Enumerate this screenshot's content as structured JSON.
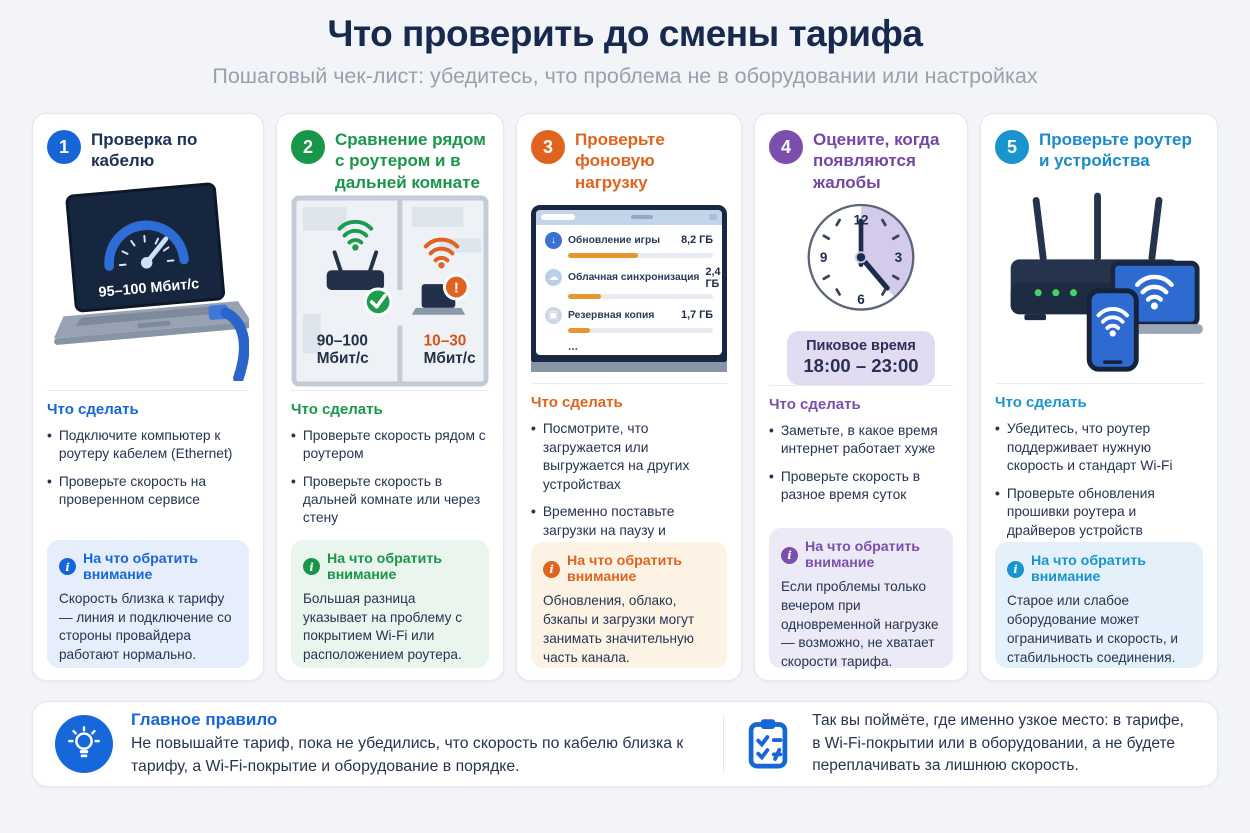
{
  "header": {
    "title": "Что проверить до смены тарифа",
    "subtitle": "Пошаговый чек-лист: убедитесь, что проблема не в оборудовании или настройках"
  },
  "shared": {
    "todo_heading": "Что сделать",
    "note_heading": "На что обратить внимание",
    "bullet": "•"
  },
  "steps": [
    {
      "number": "1",
      "title": "Проверка по кабелю",
      "accent_color": "#1766d8",
      "todo": [
        "Подключите компьютер к роутеру кабелем (Ethernet)",
        "Проверьте скорость на проверенном сервисе"
      ],
      "note": "Скорость близка к тарифу — линия и подключение со стороны провайдера работают нормально.",
      "illustration": {
        "speed": "95–100 Мбит/с"
      }
    },
    {
      "number": "2",
      "title": "Сравнение рядом с роутером и в дальней комнате",
      "accent_color": "#18964a",
      "todo": [
        "Проверьте скорость рядом с роутером",
        "Проверьте скорость в дальней комнате или через стену"
      ],
      "note": "Большая разница указывает на проблему с покрытием Wi-Fi или расположением роутера.",
      "illustration": {
        "near_speed_line1": "90–100",
        "near_speed_line2": "Мбит/с",
        "far_speed_line1": "10–30",
        "far_speed_line2": "Мбит/с"
      }
    },
    {
      "number": "3",
      "title": "Проверьте фоновую нагрузку",
      "accent_color": "#e0641f",
      "todo": [
        "Посмотрите, что загружается или выгружается на других устройствах",
        "Временно поставьте загрузки на паузу и проверьте скорость"
      ],
      "note": "Обновления, облако, бзкапы и загрузки могут занимать значительную часть канала.",
      "illustration": {
        "tasks": [
          {
            "label": "Обновление игры",
            "size": "8,2 ГБ",
            "percent": 48
          },
          {
            "label": "Облачная синхронизация",
            "size": "2,4 ГБ",
            "percent": 23
          },
          {
            "label": "Резервная копия",
            "size": "1,7 ГБ",
            "percent": 15
          }
        ],
        "more": "..."
      }
    },
    {
      "number": "4",
      "title": "Оцените, когда появляются жалобы",
      "accent_color": "#7b50ad",
      "todo": [
        "Заметьте, в какое время интернет работает хуже",
        "Проверьте скорость в разное время суток"
      ],
      "note": "Если проблемы только вечером при одновременной нагрузке — возможно, не хватает скорости тарифа.",
      "illustration": {
        "clock_numbers": [
          "12",
          "3",
          "6",
          "9"
        ],
        "badge_title": "Пиковое время",
        "badge_time": "18:00 – 23:00"
      }
    },
    {
      "number": "5",
      "title": "Проверьте роутер и устройства",
      "accent_color": "#1a94cd",
      "todo": [
        "Убедитесь, что роутер поддерживает нужную скорость и стандарт Wi-Fi",
        "Проверьте обновления прошивки роутера и драйверов устройств"
      ],
      "note": "Старое или слабое оборудование может ограничивать и скорость, и стабильность соединения."
    }
  ],
  "footer": {
    "rule_title": "Главное правило",
    "rule_text": "Не повышайте тариф, пока не убедились, что скорость по кабелю близка к тарифу, а Wi-Fi-покрытие и оборудование в порядке.",
    "conclusion": "Так вы поймёте, где именно узкое место: в тарифе, в Wi-Fi-покрытии или в оборудовании, а не будете переплачивать за лишнюю скорость."
  }
}
